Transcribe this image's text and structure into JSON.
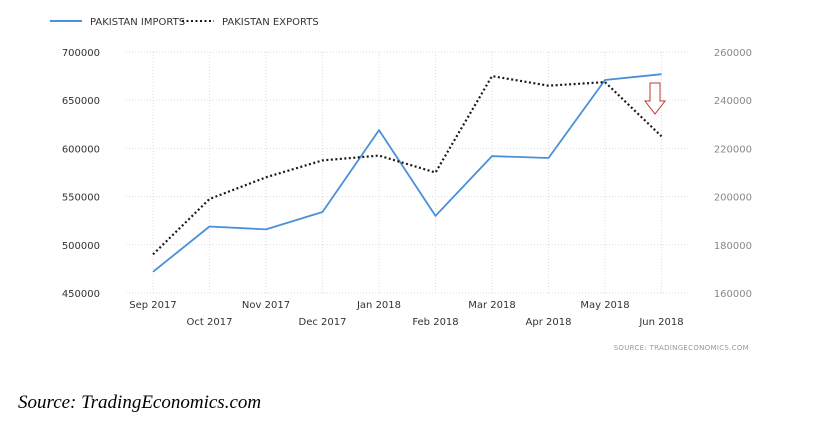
{
  "caption": "Source: TradingEconomics.com",
  "chart_data": {
    "type": "line",
    "categories": [
      "Sep 2017",
      "Oct 2017",
      "Nov 2017",
      "Dec 2017",
      "Jan 2018",
      "Feb 2018",
      "Mar 2018",
      "Apr 2018",
      "May 2018",
      "Jun 2018"
    ],
    "series": [
      {
        "name": "PAKISTAN IMPORTS",
        "axis": "left",
        "style": "solid",
        "color": "#4a90d9",
        "values": [
          472000,
          519000,
          516000,
          534000,
          619000,
          530000,
          592000,
          590000,
          671000,
          677000
        ]
      },
      {
        "name": "PAKISTAN EXPORTS",
        "axis": "right",
        "style": "dotted",
        "color": "#1a1a1a",
        "values": [
          176000,
          199000,
          208000,
          215000,
          217000,
          210000,
          250000,
          246000,
          247500,
          225000
        ]
      }
    ],
    "y_left": {
      "ticks": [
        "700000",
        "650000",
        "600000",
        "550000",
        "500000",
        "450000"
      ],
      "ylim": [
        450000,
        700000
      ]
    },
    "y_right": {
      "ticks": [
        "260000",
        "240000",
        "220000",
        "200000",
        "180000",
        "160000"
      ],
      "ylim": [
        160000,
        260000
      ]
    },
    "grid": true,
    "legend": "top-left",
    "source_note": "SOURCE: TRADINGECONOMICS.COM",
    "annotation": {
      "type": "down-arrow",
      "color": "#c0392b"
    }
  }
}
